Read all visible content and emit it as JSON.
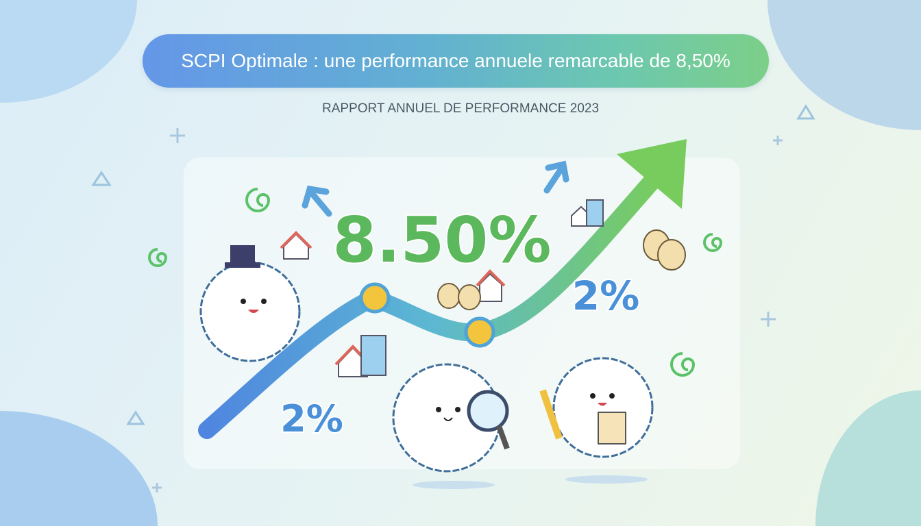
{
  "header": {
    "title": "SCPI Optimale : une performance annuele remarcable de 8,50%",
    "subtitle": "RAPPORT ANNUEL DE PERFORMANCE 2023"
  },
  "illustration": {
    "headline_value": "8.50%",
    "label_upper": "2%",
    "label_lower": "2%",
    "trend": "upward",
    "icons": [
      "arrow-up-icon",
      "house-icon",
      "money-bag-icon",
      "coin-icon",
      "spiral-icon",
      "magnifier-icon",
      "pencil-icon",
      "notepad-icon",
      "top-hat-icon"
    ]
  },
  "colors": {
    "title_gradient_start": "#6497e8",
    "title_gradient_end": "#7ccf88",
    "headline_green": "#5cb85c",
    "label_blue": "#4a90d9"
  }
}
